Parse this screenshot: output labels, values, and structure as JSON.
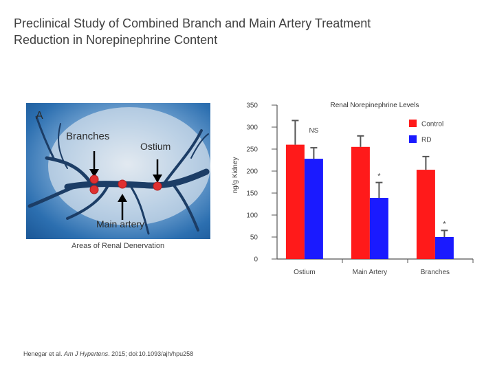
{
  "title": {
    "line1": "Preclinical Study of Combined Branch and Main Artery Treatment",
    "line2": "Reduction in Norepinephrine Content"
  },
  "figure": {
    "panel_label": "A",
    "branches_label": "Branches",
    "ostium_label": "Ostium",
    "main_artery_label": "Main artery",
    "caption": "Areas of Renal Denervation"
  },
  "citation": {
    "authors": "Henegar et al. ",
    "journal": "Am J Hypertens",
    "rest": ". 2015; doi:10.1093/ajh/hpu258"
  },
  "colors": {
    "control": "#ff1a1a",
    "rd": "#1a1aff",
    "angio_bg": "#2c6fb0",
    "marker": "#e03030"
  },
  "chart_data": {
    "type": "bar",
    "title": "Renal Norepinephrine Levels",
    "ylabel": "ng/g Kidney",
    "xlabel": "",
    "ylim": [
      0,
      350
    ],
    "yticks": [
      0,
      50,
      100,
      150,
      200,
      250,
      300,
      350
    ],
    "categories": [
      "Ostium",
      "Main Artery",
      "Branches"
    ],
    "series": [
      {
        "name": "Control",
        "color": "#ff1a1a",
        "values": [
          260,
          255,
          203
        ],
        "errors": [
          55,
          25,
          30
        ]
      },
      {
        "name": "RD",
        "color": "#1a1aff",
        "values": [
          228,
          139,
          50
        ],
        "errors": [
          25,
          35,
          15
        ]
      }
    ],
    "annotations": [
      {
        "category": "Ostium",
        "text": "NS"
      },
      {
        "category": "Main Artery",
        "text": "*"
      },
      {
        "category": "Branches",
        "text": "*"
      }
    ],
    "legend_position": "top-right"
  }
}
